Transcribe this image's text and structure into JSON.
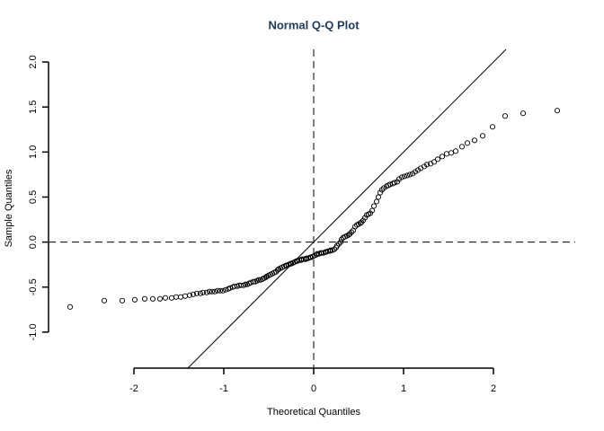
{
  "chart_data": {
    "type": "scatter",
    "title": "Normal Q-Q Plot",
    "x_label": "Theoretical Quantiles",
    "y_label": "Sample Quantiles",
    "xlim": [
      -2.95,
      2.91
    ],
    "ylim": [
      -1.4,
      2.14
    ],
    "xticks": [
      -2,
      -1,
      0,
      1,
      2
    ],
    "yticks": [
      {
        "value": -1,
        "label": "-1.0"
      },
      -0.5,
      {
        "value": 0,
        "label": "0.0"
      },
      0.5,
      {
        "value": 1,
        "label": "1.0"
      },
      1.5,
      {
        "value": 2,
        "label": "2.0"
      }
    ],
    "reference_line": {
      "slope": 1,
      "intercept": 0
    },
    "hlines": [
      0
    ],
    "vlines": [
      0
    ],
    "series": [
      {
        "color": "#000000",
        "x": [
          -2.71,
          -2.33,
          -2.13,
          -1.99,
          -1.88,
          -1.79,
          -1.71,
          -1.65,
          -1.58,
          -1.53,
          -1.48,
          -1.43,
          -1.38,
          -1.34,
          -1.3,
          -1.26,
          -1.23,
          -1.19,
          -1.16,
          -1.13,
          -1.1,
          -1.07,
          -1.04,
          -1.01,
          -0.98,
          -0.95,
          -0.93,
          -0.9,
          -0.88,
          -0.85,
          -0.83,
          -0.81,
          -0.78,
          -0.76,
          -0.74,
          -0.72,
          -0.7,
          -0.67,
          -0.65,
          -0.63,
          -0.61,
          -0.59,
          -0.57,
          -0.55,
          -0.53,
          -0.52,
          -0.5,
          -0.48,
          -0.46,
          -0.44,
          -0.42,
          -0.4,
          -0.39,
          -0.37,
          -0.35,
          -0.33,
          -0.31,
          -0.3,
          -0.28,
          -0.26,
          -0.25,
          -0.23,
          -0.21,
          -0.19,
          -0.18,
          -0.16,
          -0.14,
          -0.13,
          -0.11,
          -0.09,
          -0.08,
          -0.06,
          -0.04,
          -0.03,
          -0.01,
          0.01,
          0.03,
          0.04,
          0.06,
          0.08,
          0.09,
          0.11,
          0.13,
          0.14,
          0.16,
          0.18,
          0.19,
          0.21,
          0.23,
          0.25,
          0.26,
          0.28,
          0.3,
          0.31,
          0.33,
          0.35,
          0.37,
          0.39,
          0.4,
          0.42,
          0.44,
          0.46,
          0.48,
          0.5,
          0.52,
          0.53,
          0.55,
          0.57,
          0.59,
          0.61,
          0.63,
          0.65,
          0.67,
          0.7,
          0.72,
          0.74,
          0.76,
          0.78,
          0.81,
          0.83,
          0.85,
          0.88,
          0.9,
          0.93,
          0.95,
          0.98,
          1.01,
          1.04,
          1.07,
          1.1,
          1.13,
          1.16,
          1.19,
          1.23,
          1.26,
          1.3,
          1.34,
          1.38,
          1.43,
          1.48,
          1.53,
          1.58,
          1.65,
          1.71,
          1.79,
          1.88,
          1.99,
          2.13,
          2.33,
          2.71
        ],
        "y": [
          -0.72,
          -0.65,
          -0.65,
          -0.64,
          -0.63,
          -0.63,
          -0.63,
          -0.62,
          -0.62,
          -0.61,
          -0.61,
          -0.6,
          -0.59,
          -0.58,
          -0.57,
          -0.57,
          -0.56,
          -0.56,
          -0.55,
          -0.55,
          -0.55,
          -0.54,
          -0.54,
          -0.54,
          -0.53,
          -0.52,
          -0.51,
          -0.5,
          -0.49,
          -0.49,
          -0.48,
          -0.48,
          -0.48,
          -0.47,
          -0.47,
          -0.46,
          -0.45,
          -0.44,
          -0.44,
          -0.43,
          -0.42,
          -0.42,
          -0.41,
          -0.4,
          -0.39,
          -0.38,
          -0.37,
          -0.36,
          -0.35,
          -0.34,
          -0.33,
          -0.31,
          -0.3,
          -0.29,
          -0.28,
          -0.27,
          -0.26,
          -0.26,
          -0.25,
          -0.24,
          -0.24,
          -0.23,
          -0.22,
          -0.21,
          -0.21,
          -0.2,
          -0.2,
          -0.19,
          -0.19,
          -0.19,
          -0.18,
          -0.18,
          -0.17,
          -0.17,
          -0.16,
          -0.15,
          -0.14,
          -0.13,
          -0.13,
          -0.12,
          -0.12,
          -0.12,
          -0.11,
          -0.11,
          -0.1,
          -0.1,
          -0.09,
          -0.09,
          -0.08,
          -0.06,
          -0.04,
          -0.02,
          0.0,
          0.03,
          0.05,
          0.06,
          0.07,
          0.08,
          0.09,
          0.11,
          0.13,
          0.17,
          0.19,
          0.2,
          0.21,
          0.22,
          0.24,
          0.27,
          0.3,
          0.31,
          0.32,
          0.35,
          0.4,
          0.45,
          0.5,
          0.55,
          0.58,
          0.6,
          0.62,
          0.63,
          0.64,
          0.65,
          0.66,
          0.67,
          0.7,
          0.72,
          0.73,
          0.74,
          0.75,
          0.76,
          0.78,
          0.8,
          0.82,
          0.84,
          0.86,
          0.87,
          0.89,
          0.92,
          0.95,
          0.98,
          0.99,
          1.01,
          1.06,
          1.1,
          1.13,
          1.18,
          1.28,
          1.4,
          1.43,
          1.46
        ]
      }
    ]
  }
}
